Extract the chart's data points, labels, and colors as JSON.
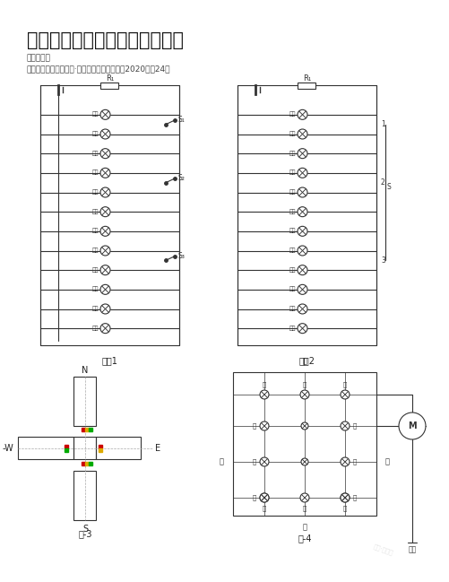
{
  "title": "初中物理综合实践活动实践案例",
  "author": "作者：赵睿",
  "source": "来源：《中学课程辅导·教师教育（上、下）》2020年第24期",
  "bg_color": "#ffffff",
  "text_color": "#1a1a1a",
  "diagram_color": "#333333",
  "fig1_label": "图－1",
  "fig2_label": "图－2",
  "fig3_label": "图-3",
  "fig4_label": "图-4",
  "fig1_lamps": [
    "年红",
    "四红",
    "南绿",
    "北绿",
    "宁黄",
    "四黄",
    "南黄",
    "北黄",
    "年绿",
    "四绿",
    "南红",
    "北红"
  ],
  "fig2_lamps": [
    "年红",
    "四红",
    "南绿",
    "北绿",
    "宁黄",
    "四黄",
    "南黄",
    "北黄",
    "年绿",
    "四绿",
    "南红",
    "北红"
  ],
  "fig1_switches": [
    "S₁",
    "S₂",
    "S₃"
  ],
  "fig2_numbers": [
    "1",
    "2",
    "3"
  ],
  "fig1_resistor": "R₁",
  "fig2_resistor": "R₁",
  "directions_north": "N",
  "directions_south": "S",
  "directions_west": "-W",
  "directions_east": "E",
  "watermark": "老师·全校实",
  "electric_label": "电源"
}
